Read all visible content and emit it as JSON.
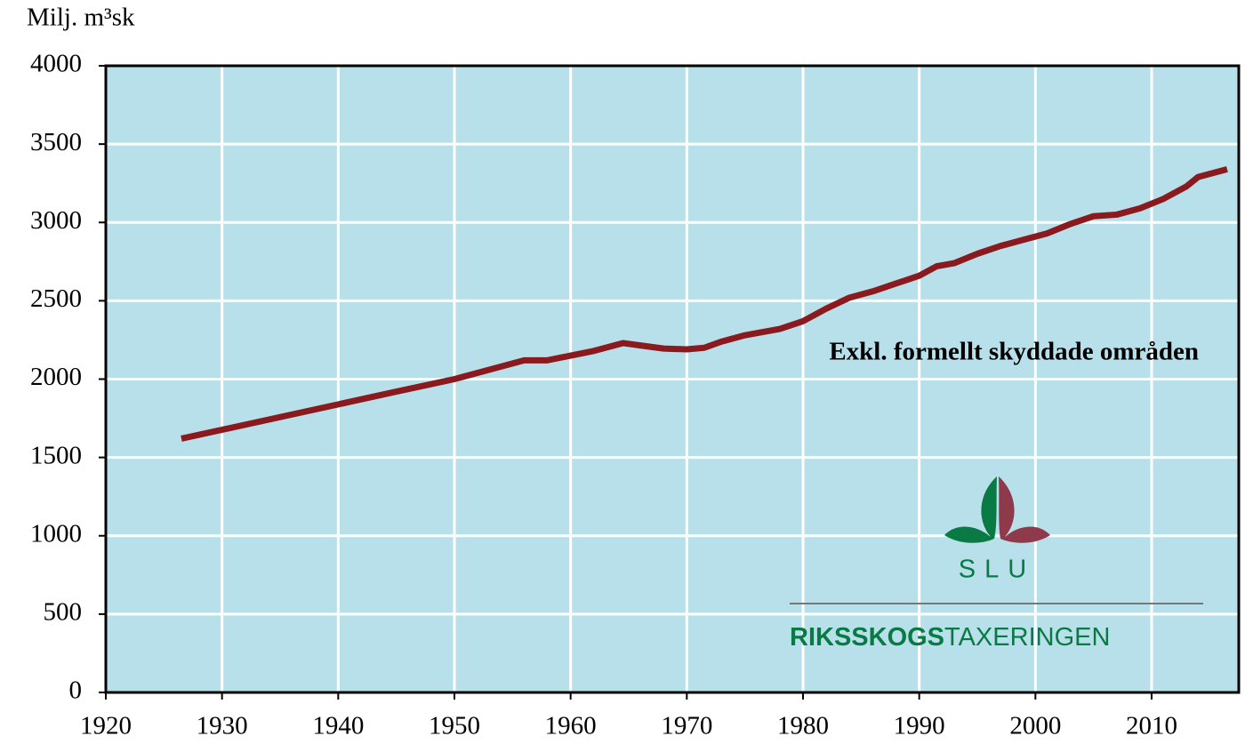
{
  "chart_data": {
    "type": "line",
    "y_label": "Milj. m³sk",
    "annotation": "Exkl. formellt skyddade områden",
    "x": [
      1926.5,
      1945,
      1950,
      1956,
      1958,
      1960,
      1962,
      1964.5,
      1966,
      1968,
      1970,
      1971.5,
      1973,
      1975,
      1978,
      1980,
      1982,
      1984,
      1986,
      1988,
      1990,
      1991.5,
      1993,
      1995,
      1997,
      1999,
      2001,
      2003,
      2005,
      2007,
      2009,
      2011,
      2013,
      2014,
      2016.5
    ],
    "values": [
      1620,
      1920,
      2000,
      2120,
      2120,
      2150,
      2180,
      2230,
      2215,
      2195,
      2190,
      2200,
      2240,
      2280,
      2320,
      2370,
      2450,
      2520,
      2560,
      2610,
      2660,
      2720,
      2740,
      2800,
      2850,
      2890,
      2930,
      2990,
      3040,
      3050,
      3090,
      3150,
      3230,
      3290,
      3340
    ],
    "color": "#8b1a1f",
    "background": "#b8e0ea",
    "grid": true,
    "xlim": [
      1920,
      2017.5
    ],
    "ylim": [
      0,
      4000
    ],
    "xticks": [
      1920,
      1930,
      1940,
      1950,
      1960,
      1970,
      1980,
      1990,
      2000,
      2010
    ],
    "yticks": [
      0,
      500,
      1000,
      1500,
      2000,
      2500,
      3000,
      3500,
      4000
    ]
  },
  "logo": {
    "name": "SLU",
    "wordmark_bold": "RIKSSKOGS",
    "wordmark_regular": "TAXERINGEN"
  }
}
